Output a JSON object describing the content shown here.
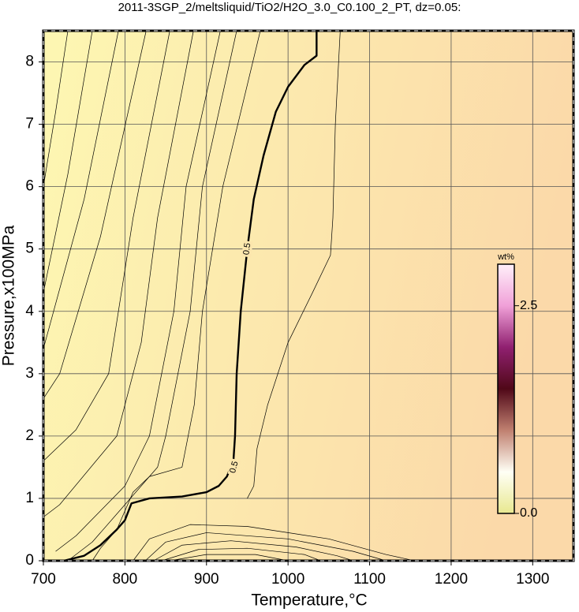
{
  "chart_data": {
    "type": "contour",
    "title": "2011-3SGP_2/meltsliquid/TiO2/H2O_3.0_C0.100_2_PT, dz=0.05:",
    "x_label": "Temperature,°C",
    "y_label": "Pressure,x100MPa",
    "xlim": [
      700,
      1350
    ],
    "xticks": [
      700,
      800,
      900,
      1000,
      1100,
      1200,
      1300
    ],
    "ylim": [
      0,
      8.5
    ],
    "yticks": [
      0,
      1,
      2,
      3,
      4,
      5,
      6,
      7,
      8
    ],
    "grid": true,
    "grid_color": "#555555",
    "background_colors": [
      "#fdf7b2",
      "#fbd9a9"
    ],
    "line_color": "#000000",
    "series": [
      {
        "level": 0.5,
        "x": [
          725,
          750,
          770,
          790,
          800,
          808,
          830,
          870,
          900,
          915,
          925,
          933,
          935,
          937,
          942,
          950,
          958,
          970,
          985,
          1000,
          1020,
          1035,
          1035
        ],
        "values": [
          0,
          0.08,
          0.25,
          0.5,
          0.65,
          0.92,
          1.0,
          1.03,
          1.1,
          1.2,
          1.35,
          1.6,
          2.0,
          3.0,
          4.0,
          5.0,
          5.8,
          6.5,
          7.2,
          7.6,
          7.95,
          8.1,
          8.5
        ]
      },
      {
        "x": [
          730,
          715,
          700
        ],
        "values": [
          8.5,
          7.2,
          6.0
        ]
      },
      {
        "x": [
          760,
          730,
          700
        ],
        "values": [
          8.5,
          6.2,
          4.3
        ]
      },
      {
        "x": [
          792,
          750,
          700
        ],
        "values": [
          8.5,
          5.8,
          3.4
        ]
      },
      {
        "x": [
          826,
          770,
          720,
          700
        ],
        "values": [
          8.5,
          5.2,
          3.0,
          2.6
        ]
      },
      {
        "x": [
          855,
          810,
          780,
          740,
          700
        ],
        "values": [
          8.5,
          5.5,
          3.0,
          2.1,
          1.6
        ]
      },
      {
        "x": [
          884,
          840,
          820,
          790,
          720,
          700
        ],
        "values": [
          8.5,
          5.5,
          3.5,
          2.0,
          0.9,
          0.7
        ]
      },
      {
        "x": [
          917,
          875,
          860,
          830,
          800,
          740,
          715
        ],
        "values": [
          8.5,
          6.0,
          4.0,
          2.0,
          1.2,
          0.4,
          0.15
        ]
      },
      {
        "x": [
          937,
          895,
          880,
          850,
          840,
          800,
          760,
          730
        ],
        "values": [
          8.5,
          6.0,
          4.0,
          2.0,
          1.5,
          0.9,
          0.3,
          0
        ]
      },
      {
        "x": [
          966,
          920,
          895,
          885,
          870,
          830,
          810,
          790,
          770,
          760
        ],
        "values": [
          8.5,
          6.0,
          4.0,
          2.5,
          1.5,
          1.35,
          1.1,
          0.5,
          0.2,
          0
        ]
      },
      {
        "x": [
          1064,
          1058,
          1055,
          1052,
          1030,
          1000,
          975,
          962,
          958,
          950
        ],
        "values": [
          8.5,
          7.0,
          5.5,
          4.9,
          4.3,
          3.5,
          2.5,
          1.8,
          1.2,
          1.0
        ]
      },
      {
        "x": [
          810,
          830,
          880,
          950,
          1050,
          1120,
          1155
        ],
        "values": [
          0,
          0.35,
          0.58,
          0.55,
          0.35,
          0.1,
          0
        ]
      },
      {
        "x": [
          825,
          850,
          900,
          1000,
          1080,
          1120
        ],
        "values": [
          0,
          0.3,
          0.45,
          0.35,
          0.15,
          0
        ]
      },
      {
        "x": [
          835,
          870,
          930,
          1010,
          1060,
          1080
        ],
        "values": [
          0,
          0.25,
          0.32,
          0.22,
          0.08,
          0
        ]
      },
      {
        "x": [
          845,
          890,
          950,
          1020,
          1040
        ],
        "values": [
          0,
          0.18,
          0.2,
          0.1,
          0
        ]
      },
      {
        "x": [
          855,
          900,
          960,
          1000
        ],
        "values": [
          0,
          0.1,
          0.1,
          0
        ]
      }
    ],
    "contour_labels": [
      {
        "x": 950,
        "y": 5.0,
        "angle": -82
      },
      {
        "x": 934,
        "y": 1.5,
        "angle": -75
      }
    ],
    "colorbar": {
      "label": "wt%",
      "lim": [
        0,
        3.0
      ],
      "ticks": [
        {
          "value": 0,
          "label": "0.0"
        },
        {
          "value": 2.5,
          "label": "2.5"
        }
      ],
      "colors": [
        "#e8e890",
        "#fffff5",
        "#c08070",
        "#500818",
        "#902070",
        "#f0a0d8",
        "#fff0fa"
      ]
    }
  }
}
